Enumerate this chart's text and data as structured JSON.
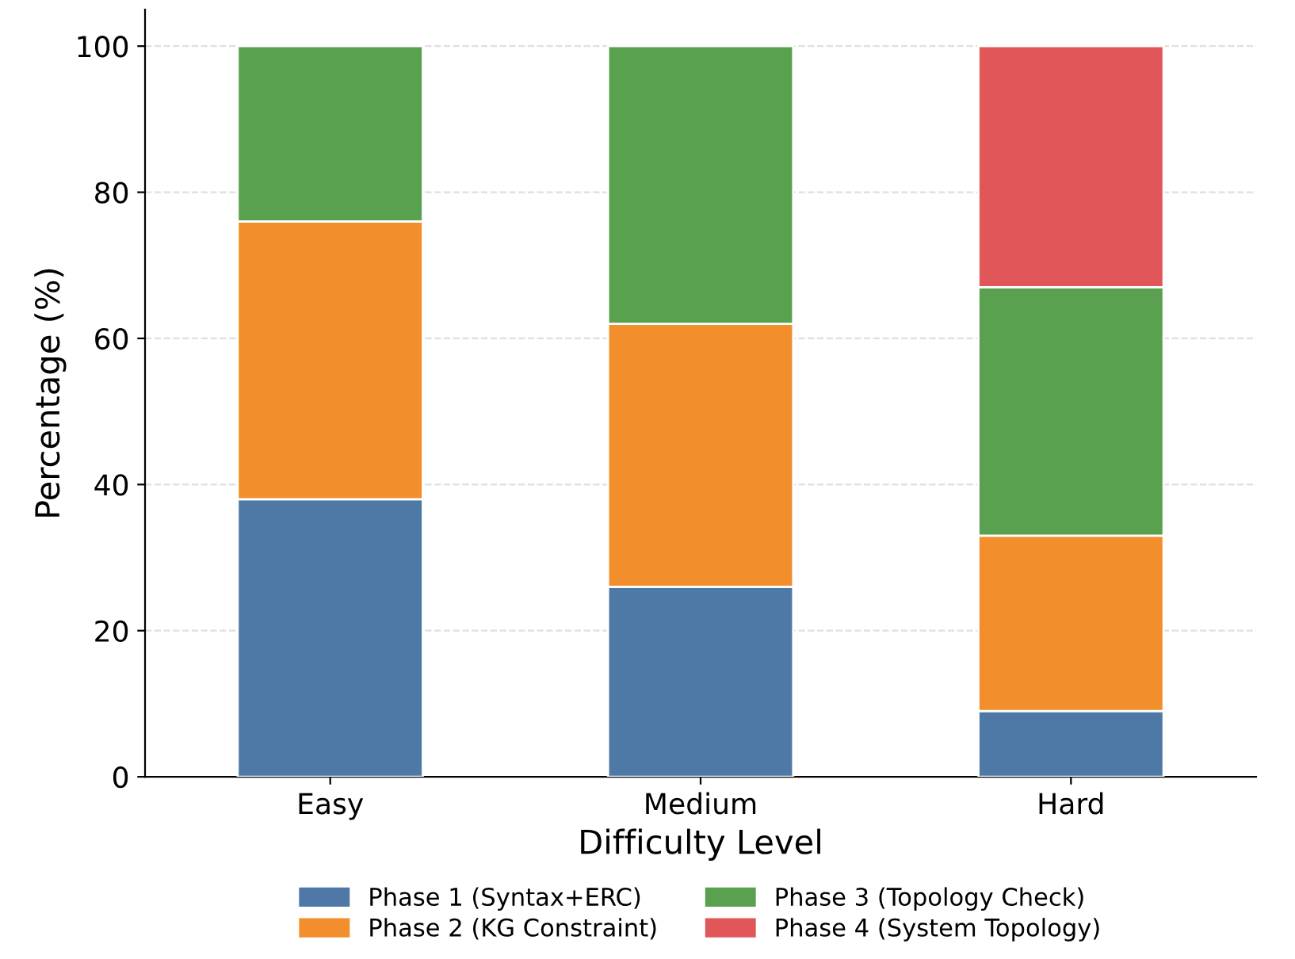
{
  "chart_data": {
    "type": "bar",
    "stacked": true,
    "xlabel": "Difficulty Level",
    "ylabel": "Percentage (%)",
    "categories": [
      "Easy",
      "Medium",
      "Hard"
    ],
    "series": [
      {
        "name": "Phase 1 (Syntax+ERC)",
        "color": "#4e79a7",
        "values": [
          38,
          26,
          9
        ]
      },
      {
        "name": "Phase 2 (KG Constraint)",
        "color": "#f28e2b",
        "values": [
          38,
          36,
          24
        ]
      },
      {
        "name": "Phase 3 (Topology Check)",
        "color": "#59a14f",
        "values": [
          24,
          38,
          34
        ]
      },
      {
        "name": "Phase 4 (System Topology)",
        "color": "#e15759",
        "values": [
          null,
          null,
          33
        ]
      }
    ],
    "ylim": [
      0,
      105
    ],
    "yticks": [
      0,
      20,
      40,
      60,
      80,
      100
    ],
    "grid": "y",
    "legend": "bottom"
  }
}
